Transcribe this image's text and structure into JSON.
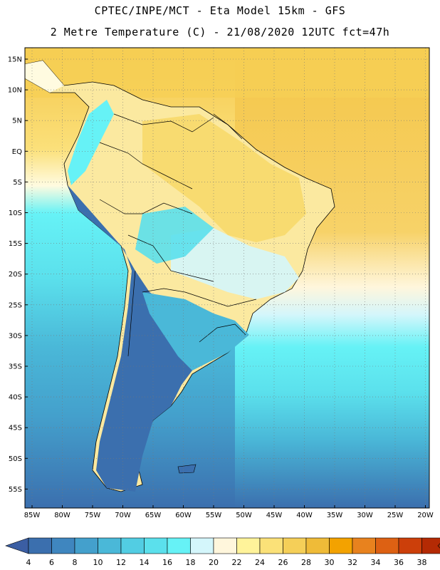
{
  "title_line1": "CPTEC/INPE/MCT -  Eta Model 15km - GFS",
  "title_line2": "2 Metre Temperature (C) - 21/08/2020 12UTC fct=47h",
  "lat_ticks": [
    "15N",
    "10N",
    "5N",
    "EQ",
    "5S",
    "10S",
    "15S",
    "20S",
    "25S",
    "30S",
    "35S",
    "40S",
    "45S",
    "50S",
    "55S"
  ],
  "lon_ticks": [
    "85W",
    "80W",
    "75W",
    "70W",
    "65W",
    "60W",
    "55W",
    "50W",
    "45W",
    "40W",
    "35W",
    "30W",
    "25W",
    "20W"
  ],
  "colorbar": {
    "labels": [
      "4",
      "6",
      "8",
      "10",
      "12",
      "14",
      "16",
      "18",
      "20",
      "22",
      "24",
      "26",
      "28",
      "30",
      "32",
      "34",
      "36",
      "38"
    ],
    "colors": [
      "#3b6fae",
      "#3f86bf",
      "#44a0cc",
      "#4ab8d8",
      "#52cde3",
      "#5be0ec",
      "#66f2f6",
      "#d4f6fb",
      "#fff6dc",
      "#fff39a",
      "#fbe178",
      "#f5cf58",
      "#efbb38",
      "#f3a200",
      "#e8821e",
      "#dd6113",
      "#cc3f0a",
      "#b42a04"
    ],
    "under_color": "#3b5ea3",
    "over_color": "#a42d03"
  }
}
